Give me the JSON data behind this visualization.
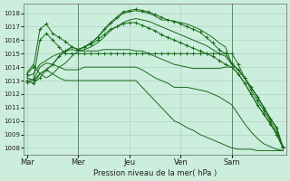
{
  "bg_color": "#cceedd",
  "grid_color": "#aaccbb",
  "line_color": "#1a6b1a",
  "ylabel_text": "Pression niveau de la mer( hPa )",
  "ylim": [
    1007.5,
    1018.7
  ],
  "xlim": [
    -1,
    81
  ],
  "yticks": [
    1008,
    1009,
    1010,
    1011,
    1012,
    1013,
    1014,
    1015,
    1016,
    1017,
    1018
  ],
  "x_tick_positions": [
    0,
    16,
    32,
    48,
    64
  ],
  "x_tick_labels": [
    "Mar",
    "Mer",
    "Jeu",
    "Ven",
    "Sam"
  ],
  "vline_positions": [
    16,
    64
  ],
  "series": [
    {
      "name": "s1_upper",
      "points": [
        [
          0,
          1013.2
        ],
        [
          2,
          1013.0
        ],
        [
          4,
          1013.5
        ],
        [
          6,
          1013.8
        ],
        [
          8,
          1014.2
        ],
        [
          10,
          1014.8
        ],
        [
          12,
          1015.2
        ],
        [
          14,
          1015.5
        ],
        [
          16,
          1015.3
        ],
        [
          18,
          1015.5
        ],
        [
          20,
          1015.8
        ],
        [
          22,
          1016.2
        ],
        [
          24,
          1016.7
        ],
        [
          26,
          1017.2
        ],
        [
          28,
          1017.6
        ],
        [
          30,
          1018.0
        ],
        [
          32,
          1018.1
        ],
        [
          34,
          1018.2
        ],
        [
          36,
          1018.1
        ],
        [
          38,
          1018.0
        ],
        [
          40,
          1017.8
        ],
        [
          42,
          1017.5
        ],
        [
          44,
          1017.5
        ],
        [
          46,
          1017.4
        ],
        [
          48,
          1017.3
        ],
        [
          50,
          1017.2
        ],
        [
          52,
          1017.0
        ],
        [
          54,
          1016.8
        ],
        [
          56,
          1016.5
        ],
        [
          58,
          1016.2
        ],
        [
          60,
          1015.8
        ],
        [
          62,
          1015.5
        ],
        [
          64,
          1014.2
        ],
        [
          66,
          1013.8
        ],
        [
          68,
          1013.2
        ],
        [
          70,
          1012.5
        ],
        [
          72,
          1011.8
        ],
        [
          74,
          1011.0
        ],
        [
          76,
          1010.2
        ],
        [
          78,
          1009.5
        ],
        [
          80,
          1008.0
        ]
      ],
      "marker": false
    },
    {
      "name": "s2_upper_marker",
      "points": [
        [
          0,
          1013.0
        ],
        [
          2,
          1012.8
        ],
        [
          4,
          1013.2
        ],
        [
          6,
          1013.8
        ],
        [
          8,
          1014.2
        ],
        [
          10,
          1014.8
        ],
        [
          12,
          1015.2
        ],
        [
          14,
          1015.5
        ],
        [
          16,
          1015.3
        ],
        [
          18,
          1015.5
        ],
        [
          20,
          1015.8
        ],
        [
          22,
          1016.2
        ],
        [
          24,
          1016.8
        ],
        [
          26,
          1017.3
        ],
        [
          28,
          1017.7
        ],
        [
          30,
          1018.1
        ],
        [
          32,
          1018.2
        ],
        [
          34,
          1018.3
        ],
        [
          36,
          1018.2
        ],
        [
          38,
          1018.1
        ],
        [
          40,
          1017.9
        ],
        [
          42,
          1017.7
        ],
        [
          44,
          1017.5
        ],
        [
          46,
          1017.4
        ],
        [
          48,
          1017.2
        ],
        [
          50,
          1017.0
        ],
        [
          52,
          1016.8
        ],
        [
          54,
          1016.6
        ],
        [
          56,
          1016.2
        ],
        [
          58,
          1015.8
        ],
        [
          60,
          1015.3
        ],
        [
          62,
          1015.0
        ],
        [
          64,
          1014.3
        ],
        [
          66,
          1013.8
        ],
        [
          68,
          1013.2
        ],
        [
          70,
          1012.5
        ],
        [
          72,
          1011.8
        ],
        [
          74,
          1011.0
        ],
        [
          76,
          1010.2
        ],
        [
          78,
          1009.5
        ],
        [
          80,
          1008.0
        ]
      ],
      "marker": true
    },
    {
      "name": "s3_mid",
      "points": [
        [
          0,
          1013.3
        ],
        [
          2,
          1013.5
        ],
        [
          4,
          1014.2
        ],
        [
          6,
          1014.5
        ],
        [
          8,
          1014.8
        ],
        [
          10,
          1015.0
        ],
        [
          12,
          1015.2
        ],
        [
          14,
          1015.3
        ],
        [
          16,
          1015.2
        ],
        [
          18,
          1015.3
        ],
        [
          20,
          1015.5
        ],
        [
          22,
          1015.8
        ],
        [
          24,
          1016.2
        ],
        [
          26,
          1016.7
        ],
        [
          28,
          1017.0
        ],
        [
          30,
          1017.3
        ],
        [
          32,
          1017.5
        ],
        [
          34,
          1017.6
        ],
        [
          36,
          1017.5
        ],
        [
          38,
          1017.4
        ],
        [
          40,
          1017.2
        ],
        [
          42,
          1017.0
        ],
        [
          44,
          1016.8
        ],
        [
          46,
          1016.6
        ],
        [
          48,
          1016.4
        ],
        [
          50,
          1016.2
        ],
        [
          52,
          1016.0
        ],
        [
          54,
          1015.8
        ],
        [
          56,
          1015.6
        ],
        [
          58,
          1015.3
        ],
        [
          60,
          1015.0
        ],
        [
          62,
          1014.8
        ],
        [
          64,
          1014.2
        ],
        [
          66,
          1013.8
        ],
        [
          68,
          1013.2
        ],
        [
          70,
          1012.5
        ],
        [
          72,
          1011.8
        ],
        [
          74,
          1011.0
        ],
        [
          76,
          1010.2
        ],
        [
          78,
          1009.5
        ],
        [
          80,
          1008.0
        ]
      ],
      "marker": false
    },
    {
      "name": "s4_mid_marker",
      "points": [
        [
          0,
          1013.5
        ],
        [
          2,
          1014.0
        ],
        [
          4,
          1016.8
        ],
        [
          6,
          1017.2
        ],
        [
          8,
          1016.5
        ],
        [
          10,
          1016.2
        ],
        [
          12,
          1015.9
        ],
        [
          14,
          1015.5
        ],
        [
          16,
          1015.3
        ],
        [
          18,
          1015.5
        ],
        [
          20,
          1015.7
        ],
        [
          22,
          1016.0
        ],
        [
          24,
          1016.4
        ],
        [
          26,
          1016.8
        ],
        [
          28,
          1017.0
        ],
        [
          30,
          1017.2
        ],
        [
          32,
          1017.3
        ],
        [
          34,
          1017.3
        ],
        [
          36,
          1017.1
        ],
        [
          38,
          1016.9
        ],
        [
          40,
          1016.7
        ],
        [
          42,
          1016.4
        ],
        [
          44,
          1016.2
        ],
        [
          46,
          1016.0
        ],
        [
          48,
          1015.8
        ],
        [
          50,
          1015.6
        ],
        [
          52,
          1015.4
        ],
        [
          54,
          1015.2
        ],
        [
          56,
          1015.0
        ],
        [
          58,
          1014.8
        ],
        [
          60,
          1014.5
        ],
        [
          62,
          1014.2
        ],
        [
          64,
          1014.0
        ],
        [
          66,
          1013.5
        ],
        [
          68,
          1012.8
        ],
        [
          70,
          1012.0
        ],
        [
          72,
          1011.2
        ],
        [
          74,
          1010.5
        ],
        [
          76,
          1009.8
        ],
        [
          78,
          1009.0
        ],
        [
          80,
          1008.0
        ]
      ],
      "marker": true
    },
    {
      "name": "s5_flat",
      "points": [
        [
          0,
          1013.6
        ],
        [
          2,
          1014.2
        ],
        [
          4,
          1013.5
        ],
        [
          6,
          1013.2
        ],
        [
          8,
          1013.5
        ],
        [
          10,
          1014.0
        ],
        [
          12,
          1014.3
        ],
        [
          14,
          1014.8
        ],
        [
          16,
          1015.2
        ],
        [
          18,
          1015.2
        ],
        [
          20,
          1015.2
        ],
        [
          22,
          1015.2
        ],
        [
          24,
          1015.3
        ],
        [
          26,
          1015.3
        ],
        [
          28,
          1015.3
        ],
        [
          30,
          1015.3
        ],
        [
          32,
          1015.3
        ],
        [
          34,
          1015.2
        ],
        [
          36,
          1015.2
        ],
        [
          38,
          1015.0
        ],
        [
          40,
          1014.8
        ],
        [
          42,
          1014.6
        ],
        [
          44,
          1014.4
        ],
        [
          46,
          1014.2
        ],
        [
          48,
          1014.1
        ],
        [
          50,
          1014.0
        ],
        [
          52,
          1013.9
        ],
        [
          54,
          1013.9
        ],
        [
          56,
          1013.9
        ],
        [
          58,
          1013.9
        ],
        [
          60,
          1013.9
        ],
        [
          62,
          1014.0
        ],
        [
          64,
          1014.0
        ],
        [
          66,
          1013.5
        ],
        [
          68,
          1012.8
        ],
        [
          70,
          1012.0
        ],
        [
          72,
          1011.2
        ],
        [
          74,
          1010.5
        ],
        [
          76,
          1009.8
        ],
        [
          78,
          1009.0
        ],
        [
          80,
          1008.0
        ]
      ],
      "marker": false
    },
    {
      "name": "s6_flat_marker",
      "points": [
        [
          0,
          1012.9
        ],
        [
          2,
          1013.1
        ],
        [
          4,
          1016.0
        ],
        [
          6,
          1016.5
        ],
        [
          8,
          1016.0
        ],
        [
          10,
          1015.5
        ],
        [
          12,
          1015.0
        ],
        [
          14,
          1015.0
        ],
        [
          16,
          1015.0
        ],
        [
          18,
          1015.0
        ],
        [
          20,
          1015.0
        ],
        [
          22,
          1015.0
        ],
        [
          24,
          1015.0
        ],
        [
          26,
          1015.0
        ],
        [
          28,
          1015.0
        ],
        [
          30,
          1015.0
        ],
        [
          32,
          1015.0
        ],
        [
          34,
          1015.0
        ],
        [
          36,
          1015.0
        ],
        [
          38,
          1015.0
        ],
        [
          40,
          1015.0
        ],
        [
          42,
          1015.0
        ],
        [
          44,
          1015.0
        ],
        [
          46,
          1015.0
        ],
        [
          48,
          1015.0
        ],
        [
          50,
          1015.0
        ],
        [
          52,
          1015.0
        ],
        [
          54,
          1015.0
        ],
        [
          56,
          1015.0
        ],
        [
          58,
          1015.0
        ],
        [
          60,
          1015.0
        ],
        [
          62,
          1015.0
        ],
        [
          64,
          1015.0
        ],
        [
          66,
          1014.2
        ],
        [
          68,
          1013.2
        ],
        [
          70,
          1012.3
        ],
        [
          72,
          1011.5
        ],
        [
          74,
          1010.8
        ],
        [
          76,
          1010.0
        ],
        [
          78,
          1009.2
        ],
        [
          80,
          1008.1
        ]
      ],
      "marker": true
    },
    {
      "name": "s7_low",
      "points": [
        [
          0,
          1013.2
        ],
        [
          2,
          1013.0
        ],
        [
          4,
          1014.0
        ],
        [
          6,
          1014.3
        ],
        [
          8,
          1014.2
        ],
        [
          10,
          1014.0
        ],
        [
          12,
          1013.8
        ],
        [
          14,
          1013.8
        ],
        [
          16,
          1013.8
        ],
        [
          18,
          1014.0
        ],
        [
          20,
          1014.0
        ],
        [
          22,
          1014.0
        ],
        [
          24,
          1014.0
        ],
        [
          26,
          1014.0
        ],
        [
          28,
          1014.0
        ],
        [
          30,
          1014.0
        ],
        [
          32,
          1014.0
        ],
        [
          34,
          1014.0
        ],
        [
          36,
          1013.8
        ],
        [
          38,
          1013.5
        ],
        [
          40,
          1013.2
        ],
        [
          42,
          1013.0
        ],
        [
          44,
          1012.8
        ],
        [
          46,
          1012.5
        ],
        [
          48,
          1012.5
        ],
        [
          50,
          1012.5
        ],
        [
          52,
          1012.4
        ],
        [
          54,
          1012.3
        ],
        [
          56,
          1012.2
        ],
        [
          58,
          1012.0
        ],
        [
          60,
          1011.8
        ],
        [
          62,
          1011.5
        ],
        [
          64,
          1011.2
        ],
        [
          66,
          1010.5
        ],
        [
          68,
          1009.8
        ],
        [
          70,
          1009.2
        ],
        [
          72,
          1008.7
        ],
        [
          74,
          1008.3
        ],
        [
          76,
          1008.1
        ],
        [
          78,
          1007.9
        ],
        [
          80,
          1007.8
        ]
      ],
      "marker": false
    },
    {
      "name": "s8_lowest",
      "points": [
        [
          0,
          1013.0
        ],
        [
          2,
          1012.8
        ],
        [
          4,
          1013.5
        ],
        [
          6,
          1013.8
        ],
        [
          8,
          1013.5
        ],
        [
          10,
          1013.2
        ],
        [
          12,
          1013.0
        ],
        [
          14,
          1013.0
        ],
        [
          16,
          1013.0
        ],
        [
          18,
          1013.0
        ],
        [
          20,
          1013.0
        ],
        [
          22,
          1013.0
        ],
        [
          24,
          1013.0
        ],
        [
          26,
          1013.0
        ],
        [
          28,
          1013.0
        ],
        [
          30,
          1013.0
        ],
        [
          32,
          1013.0
        ],
        [
          34,
          1013.0
        ],
        [
          36,
          1012.5
        ],
        [
          38,
          1012.0
        ],
        [
          40,
          1011.5
        ],
        [
          42,
          1011.0
        ],
        [
          44,
          1010.5
        ],
        [
          46,
          1010.0
        ],
        [
          48,
          1009.8
        ],
        [
          50,
          1009.5
        ],
        [
          52,
          1009.3
        ],
        [
          54,
          1009.0
        ],
        [
          56,
          1008.8
        ],
        [
          58,
          1008.6
        ],
        [
          60,
          1008.4
        ],
        [
          62,
          1008.2
        ],
        [
          64,
          1008.0
        ],
        [
          66,
          1007.9
        ],
        [
          68,
          1007.9
        ],
        [
          70,
          1007.9
        ],
        [
          72,
          1007.8
        ],
        [
          74,
          1007.8
        ],
        [
          76,
          1007.8
        ],
        [
          78,
          1007.8
        ],
        [
          80,
          1007.8
        ]
      ],
      "marker": false
    }
  ]
}
